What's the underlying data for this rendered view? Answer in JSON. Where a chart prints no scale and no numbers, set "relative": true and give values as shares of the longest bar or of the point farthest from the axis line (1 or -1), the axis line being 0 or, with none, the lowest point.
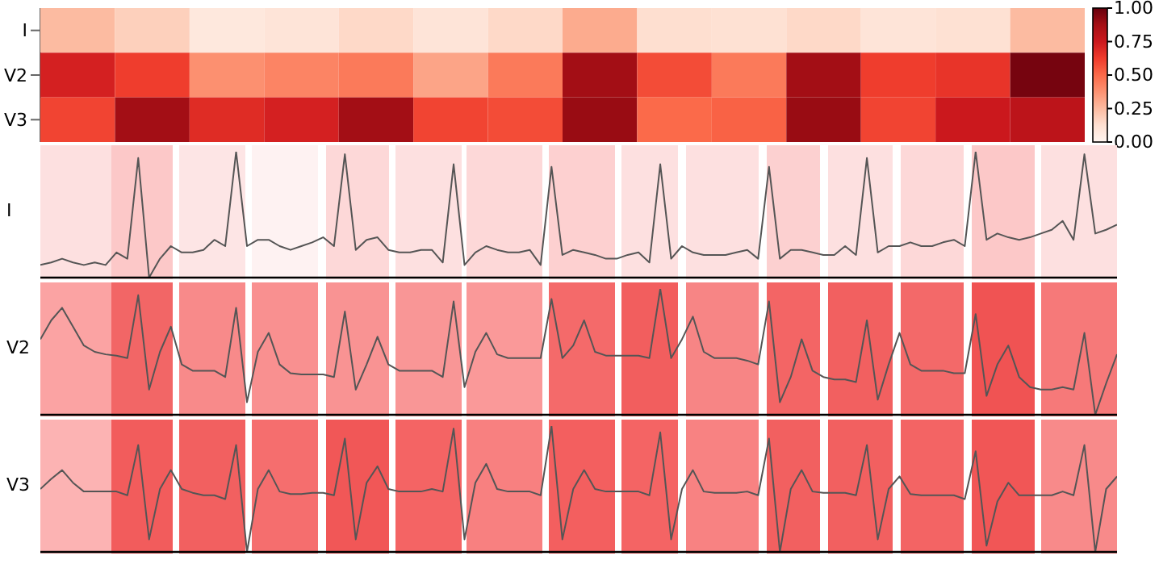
{
  "chart_data": [
    {
      "type": "heatmap",
      "categories": [
        null,
        null,
        null,
        null,
        null,
        null,
        null,
        null,
        null,
        null,
        null,
        null,
        null,
        null
      ],
      "y_categories": [
        "I",
        "V2",
        "V3"
      ],
      "cells": [
        [
          0.25,
          0.18,
          0.08,
          0.1,
          0.15,
          0.1,
          0.15,
          0.3,
          0.13,
          0.12,
          0.15,
          0.1,
          0.12,
          0.25
        ],
        [
          0.72,
          0.62,
          0.38,
          0.42,
          0.45,
          0.32,
          0.45,
          0.88,
          0.58,
          0.45,
          0.88,
          0.62,
          0.65,
          0.97
        ],
        [
          0.6,
          0.88,
          0.68,
          0.72,
          0.88,
          0.6,
          0.58,
          0.9,
          0.5,
          0.52,
          0.9,
          0.6,
          0.75,
          0.8
        ]
      ],
      "clim": [
        0,
        1
      ],
      "cticks": [
        {
          "value": 0,
          "label": "0.00"
        },
        {
          "value": 0.25,
          "label": "0.25"
        },
        {
          "value": 0.5,
          "label": "0.50"
        },
        {
          "value": 0.75,
          "label": "0.75"
        },
        {
          "value": 1,
          "label": "1.00"
        }
      ],
      "tick_labels": "y"
    },
    {
      "type": "line",
      "relative": true,
      "ylabel": "I",
      "tick_labels": false,
      "categories": [
        null,
        null,
        null,
        null,
        null,
        null,
        null,
        null,
        null,
        null,
        null,
        null,
        null,
        null,
        null,
        null,
        null,
        null,
        null,
        null,
        null,
        null,
        null,
        null,
        null,
        null,
        null,
        null,
        null,
        null,
        null,
        null,
        null,
        null,
        null,
        null,
        null,
        null,
        null,
        null,
        null,
        null,
        null,
        null,
        null,
        null,
        null,
        null,
        null,
        null,
        null,
        null,
        null,
        null,
        null,
        null,
        null,
        null,
        null,
        null,
        null,
        null,
        null,
        null,
        null,
        null,
        null,
        null,
        null,
        null,
        null,
        null,
        null,
        null,
        null,
        null,
        null,
        null,
        null,
        null,
        null,
        null,
        null,
        null,
        null,
        null,
        null,
        null,
        null,
        null,
        null,
        null,
        null,
        null,
        null,
        null,
        null,
        null,
        null,
        null
      ],
      "series": [
        {
          "color": "#555555",
          "values": [
            0.1,
            0.12,
            0.15,
            0.12,
            0.1,
            0.12,
            0.1,
            0.2,
            0.15,
            0.95,
            0.0,
            0.15,
            0.25,
            0.2,
            0.2,
            0.22,
            0.3,
            0.25,
            1.0,
            0.25,
            0.3,
            0.3,
            0.25,
            0.22,
            0.25,
            0.28,
            0.32,
            0.25,
            0.98,
            0.22,
            0.3,
            0.32,
            0.22,
            0.2,
            0.2,
            0.22,
            0.22,
            0.12,
            0.9,
            0.1,
            0.2,
            0.25,
            0.22,
            0.2,
            0.2,
            0.22,
            0.1,
            0.88,
            0.18,
            0.22,
            0.2,
            0.18,
            0.15,
            0.15,
            0.18,
            0.2,
            0.12,
            0.9,
            0.15,
            0.25,
            0.2,
            0.18,
            0.18,
            0.18,
            0.2,
            0.22,
            0.15,
            0.88,
            0.15,
            0.22,
            0.22,
            0.2,
            0.18,
            0.18,
            0.25,
            0.18,
            0.95,
            0.2,
            0.25,
            0.25,
            0.28,
            0.25,
            0.25,
            0.28,
            0.3,
            0.25,
            1.0,
            0.3,
            0.35,
            0.32,
            0.3,
            0.32,
            0.35,
            0.38,
            0.45,
            0.3,
            0.98,
            0.35,
            0.38,
            0.42
          ]
        }
      ]
    },
    {
      "type": "line",
      "relative": true,
      "ylabel": "V2",
      "tick_labels": false,
      "categories": [
        null,
        null,
        null,
        null,
        null,
        null,
        null,
        null,
        null,
        null,
        null,
        null,
        null,
        null,
        null,
        null,
        null,
        null,
        null,
        null,
        null,
        null,
        null,
        null,
        null,
        null,
        null,
        null,
        null,
        null,
        null,
        null,
        null,
        null,
        null,
        null,
        null,
        null,
        null,
        null,
        null,
        null,
        null,
        null,
        null,
        null,
        null,
        null,
        null,
        null,
        null,
        null,
        null,
        null,
        null,
        null,
        null,
        null,
        null,
        null,
        null,
        null,
        null,
        null,
        null,
        null,
        null,
        null,
        null,
        null,
        null,
        null,
        null,
        null,
        null,
        null,
        null,
        null,
        null,
        null,
        null,
        null,
        null,
        null,
        null,
        null,
        null,
        null,
        null,
        null,
        null,
        null,
        null,
        null,
        null,
        null,
        null,
        null,
        null,
        null
      ],
      "series": [
        {
          "color": "#555555",
          "values": [
            0.6,
            0.75,
            0.85,
            0.7,
            0.55,
            0.5,
            0.48,
            0.47,
            0.45,
            0.95,
            0.2,
            0.5,
            0.7,
            0.4,
            0.35,
            0.35,
            0.35,
            0.3,
            0.85,
            0.1,
            0.5,
            0.65,
            0.4,
            0.33,
            0.32,
            0.32,
            0.32,
            0.3,
            0.82,
            0.2,
            0.4,
            0.62,
            0.4,
            0.35,
            0.35,
            0.35,
            0.35,
            0.3,
            0.9,
            0.22,
            0.5,
            0.65,
            0.48,
            0.45,
            0.45,
            0.45,
            0.45,
            0.92,
            0.45,
            0.55,
            0.75,
            0.5,
            0.47,
            0.47,
            0.47,
            0.47,
            0.45,
            1.0,
            0.45,
            0.6,
            0.78,
            0.5,
            0.45,
            0.45,
            0.45,
            0.43,
            0.4,
            0.9,
            0.1,
            0.3,
            0.6,
            0.35,
            0.3,
            0.28,
            0.28,
            0.26,
            0.75,
            0.12,
            0.4,
            0.65,
            0.4,
            0.35,
            0.35,
            0.35,
            0.33,
            0.33,
            0.8,
            0.15,
            0.4,
            0.55,
            0.3,
            0.22,
            0.2,
            0.2,
            0.22,
            0.2,
            0.65,
            0.0,
            0.25,
            0.48
          ]
        }
      ]
    },
    {
      "type": "line",
      "relative": true,
      "ylabel": "V3",
      "tick_labels": false,
      "categories": [
        null,
        null,
        null,
        null,
        null,
        null,
        null,
        null,
        null,
        null,
        null,
        null,
        null,
        null,
        null,
        null,
        null,
        null,
        null,
        null,
        null,
        null,
        null,
        null,
        null,
        null,
        null,
        null,
        null,
        null,
        null,
        null,
        null,
        null,
        null,
        null,
        null,
        null,
        null,
        null,
        null,
        null,
        null,
        null,
        null,
        null,
        null,
        null,
        null,
        null,
        null,
        null,
        null,
        null,
        null,
        null,
        null,
        null,
        null,
        null,
        null,
        null,
        null,
        null,
        null,
        null,
        null,
        null,
        null,
        null,
        null,
        null,
        null,
        null,
        null,
        null,
        null,
        null,
        null,
        null,
        null,
        null,
        null,
        null,
        null,
        null,
        null,
        null,
        null,
        null,
        null,
        null,
        null,
        null,
        null,
        null,
        null,
        null,
        null,
        null
      ],
      "series": [
        {
          "color": "#555555",
          "values": [
            0.5,
            0.58,
            0.65,
            0.55,
            0.48,
            0.48,
            0.48,
            0.48,
            0.45,
            0.85,
            0.1,
            0.5,
            0.65,
            0.5,
            0.47,
            0.45,
            0.45,
            0.42,
            0.85,
            0.0,
            0.5,
            0.65,
            0.48,
            0.46,
            0.46,
            0.47,
            0.47,
            0.45,
            0.9,
            0.1,
            0.55,
            0.68,
            0.5,
            0.48,
            0.48,
            0.48,
            0.5,
            0.48,
            0.98,
            0.1,
            0.55,
            0.7,
            0.5,
            0.48,
            0.48,
            0.48,
            0.45,
            1.0,
            0.1,
            0.5,
            0.65,
            0.5,
            0.48,
            0.48,
            0.48,
            0.48,
            0.45,
            0.95,
            0.1,
            0.5,
            0.65,
            0.48,
            0.47,
            0.47,
            0.47,
            0.48,
            0.45,
            0.9,
            0.0,
            0.5,
            0.65,
            0.48,
            0.47,
            0.47,
            0.47,
            0.45,
            0.85,
            0.1,
            0.5,
            0.6,
            0.46,
            0.45,
            0.45,
            0.45,
            0.45,
            0.42,
            0.8,
            0.05,
            0.4,
            0.55,
            0.45,
            0.45,
            0.45,
            0.45,
            0.48,
            0.45,
            0.85,
            0.0,
            0.5,
            0.6
          ]
        }
      ]
    }
  ]
}
